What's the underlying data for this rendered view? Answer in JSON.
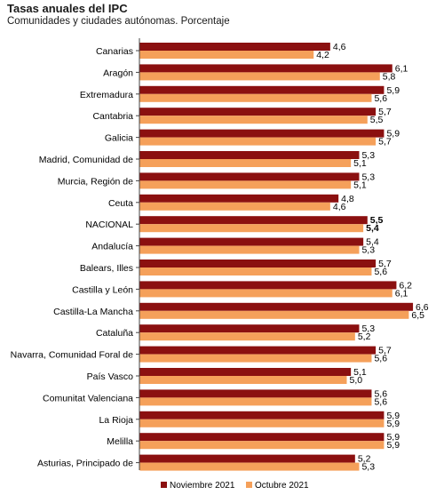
{
  "chart_data": {
    "type": "bar",
    "orientation": "horizontal",
    "title": "Tasas anuales del IPC",
    "subtitle": "Comunidades y ciudades autónomas. Porcentaje",
    "categories": [
      "Canarias",
      "Aragón",
      "Extremadura",
      "Cantabria",
      "Galicia",
      "Madrid, Comunidad de",
      "Murcia, Región de",
      "Ceuta",
      "NACIONAL",
      "Andalucía",
      "Balears, Illes",
      "Castilla y León",
      "Castilla-La Mancha",
      "Cataluña",
      "Navarra, Comunidad Foral de",
      "País Vasco",
      "Comunitat Valenciana",
      "La Rioja",
      "Melilla",
      "Asturias, Principado de"
    ],
    "series": [
      {
        "name": "Noviembre 2021",
        "color": "#8b1010",
        "values": [
          4.6,
          6.1,
          5.9,
          5.7,
          5.9,
          5.3,
          5.3,
          4.8,
          5.5,
          5.4,
          5.7,
          6.2,
          6.6,
          5.3,
          5.7,
          5.1,
          5.6,
          5.9,
          5.9,
          5.2
        ],
        "labels": [
          "4,6",
          "6,1",
          "5,9",
          "5,7",
          "5,9",
          "5,3",
          "5,3",
          "4,8",
          "5,5",
          "5,4",
          "5,7",
          "6,2",
          "6,6",
          "5,3",
          "5,7",
          "5,1",
          "5,6",
          "5,9",
          "5,9",
          "5,2"
        ]
      },
      {
        "name": "Octubre 2021",
        "color": "#f5a05a",
        "values": [
          4.2,
          5.8,
          5.6,
          5.5,
          5.7,
          5.1,
          5.1,
          4.6,
          5.4,
          5.3,
          5.6,
          6.1,
          6.5,
          5.2,
          5.6,
          5.0,
          5.6,
          5.9,
          5.9,
          5.3
        ],
        "labels": [
          "4,2",
          "5,8",
          "5,6",
          "5,5",
          "5,7",
          "5,1",
          "5,1",
          "4,6",
          "5,4",
          "5,3",
          "5,6",
          "6,1",
          "6,5",
          "5,2",
          "5,6",
          "5,0",
          "5,6",
          "5,9",
          "5,9",
          "5,3"
        ]
      }
    ],
    "highlight_category": "NACIONAL",
    "xlim": [
      0,
      6.6
    ],
    "grid": false,
    "legend_position": "bottom"
  }
}
